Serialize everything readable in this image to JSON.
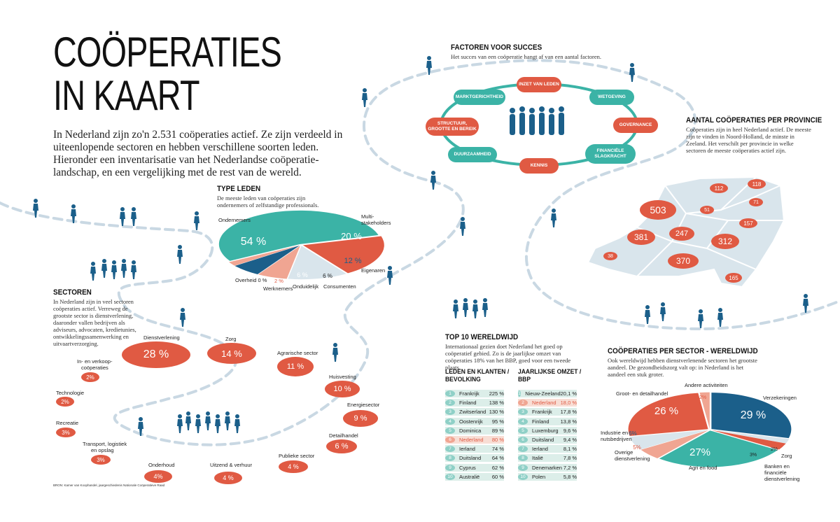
{
  "header": {
    "title_line1": "COÖPERATIES",
    "title_line2": "IN KAART",
    "intro": "In Nederland zijn zo'n 2.531 coöperaties actief. Ze zijn verdeeld in uiteenlopende sectoren en hebben verschillene soorten leden. Hieronder een inventarisatie van het Nederlandse coöperatie-landschap, en een vergelijking met de rest van de wereld."
  },
  "type_leden": {
    "title": "TYPE LEDEN",
    "desc": "De meeste leden van coöperaties zijn ondernemers of zelfstandige professionals.",
    "chart_data": {
      "type": "pie",
      "title": "TYPE LEDEN",
      "slices": [
        {
          "label": "Ondernemers",
          "value": 54,
          "display": "54 %",
          "color": "#3bb3a6"
        },
        {
          "label": "Multi-stakeholders",
          "value": 20,
          "display": "20 %",
          "color": "#e05a43"
        },
        {
          "label": "Eigenaren",
          "value": 12,
          "display": "12 %",
          "color": "#d9e5ec"
        },
        {
          "label": "Consumenten",
          "value": 6,
          "display": "6 %",
          "color": "#f0a592"
        },
        {
          "label": "Onduidelijk",
          "value": 6,
          "display": "6 %",
          "color": "#1b5f8a"
        },
        {
          "label": "Werknemers",
          "value": 2,
          "display": "2 %",
          "color": "#f0a592"
        },
        {
          "label": "Overheid",
          "value": 0,
          "display": "0 %",
          "color": "#cccccc"
        }
      ]
    },
    "labels": {
      "ondernemers": "Ondernemers",
      "multi1": "Multi-",
      "multi2": "stakeholders",
      "eigenaren": "Eigenaren",
      "consumenten": "Consumenten",
      "onduidelijk": "Onduidelijk",
      "werknemers": "Werknemers",
      "overheid": "Overheid",
      "overheid_val": "0 %",
      "werknemers_val": "2 %"
    }
  },
  "sectoren": {
    "title": "SECTOREN",
    "desc": "In Nederland zijn in veel sectoren coöperaties actief. Verreweg de grootste sector is dienstverlening, daaronder vallen bedrijven als adviseurs, advocaten, kredietunies, ontwikkelingssamenwerking en uitvaartverzorging.",
    "chart_data": {
      "type": "bar",
      "categories": [
        "Dienstverlening",
        "Zorg",
        "Agrarische sector",
        "Huisvesting",
        "Energiesector",
        "Detailhandel",
        "Publieke sector",
        "Uitzend & verhuur",
        "Onderhoud",
        "In- en verkoop-coöperaties",
        "Technologie",
        "Recreatie",
        "Transport, logistiek en opslag"
      ],
      "values": [
        28,
        14,
        11,
        10,
        9,
        6,
        4,
        4,
        4,
        2,
        2,
        3,
        3
      ],
      "unit": "%"
    },
    "items": {
      "dienst": {
        "label": "Dienstverlening",
        "val": "28 %"
      },
      "zorg": {
        "label": "Zorg",
        "val": "14 %"
      },
      "agrar": {
        "label": "Agrarische sector",
        "val": "11 %"
      },
      "huis": {
        "label": "Huisvesting",
        "val": "10 %"
      },
      "energie": {
        "label": "Energiesector",
        "val": "9 %"
      },
      "detail": {
        "label": "Detailhandel",
        "val": "6 %"
      },
      "publiek": {
        "label": "Publieke sector",
        "val": "4 %"
      },
      "uitzend": {
        "label": "Uitzend & verhuur",
        "val": "4 %"
      },
      "onderhoud": {
        "label": "Onderhoud",
        "val": "4%"
      },
      "inverkoop": {
        "label1": "In- en verkoop-",
        "label2": "coöperaties",
        "val": "2%"
      },
      "tech": {
        "label": "Technologie",
        "val": "2%"
      },
      "recreatie": {
        "label": "Recreatie",
        "val": "3%"
      },
      "transport": {
        "label1": "Transport, logistiek",
        "label2": "en opslag",
        "val": "3%"
      }
    }
  },
  "factoren": {
    "title": "FACTOREN VOOR SUCCES",
    "desc": "Het succes van een coöperatie hangt af van een aantal factoren.",
    "items": {
      "inzet": "INZET VAN LEDEN",
      "markt": "MARKTGERICHTHEID",
      "wet": "WETGEVING",
      "struct1": "STRUCTUUR,",
      "struct2": "GROOTTE EN BEREIK",
      "gov": "GOVERNANCE",
      "duur": "DUURZAAMHEID",
      "fin1": "FINANCIËLE",
      "fin2": "SLAGKRACHT",
      "kennis": "KENNIS"
    }
  },
  "provincie": {
    "title": "AANTAL COÖPERATIES PER PROVINCIE",
    "desc": "Coöperaties zijn in heel Nederland actief. De meeste zijn te vinden in Noord-Holland, de minste in Zeeland. Het verschilt per provincie in welke sectoren de meeste coöperaties actief zijn.",
    "values": {
      "nh": "503",
      "gr": "118",
      "fr": "112",
      "dr": "71",
      "fl": "51",
      "ov": "157",
      "zh": "381",
      "ut": "247",
      "ge": "312",
      "nb": "370",
      "li": "165",
      "ze": "38"
    }
  },
  "top10": {
    "title": "TOP 10 WERELDWIJD",
    "desc": "Internationaal gezien doet Nederland het goed op coöperatief gebied. Zo is de jaarlijkse omzet van coöperaties 18% van het BBP, goed voor een tweede plaats.",
    "col1_title1": "LEDEN EN KLANTEN /",
    "col1_title2": "BEVOLKING",
    "col2_title1": "JAARLIJKSE OMZET /",
    "col2_title2": "BBP",
    "col1": [
      {
        "rank": "1",
        "country": "Frankrijk",
        "val": "225 %"
      },
      {
        "rank": "2",
        "country": "Finland",
        "val": "138 %"
      },
      {
        "rank": "3",
        "country": "Zwitserland",
        "val": "130 %"
      },
      {
        "rank": "4",
        "country": "Oostenrijk",
        "val": "95 %"
      },
      {
        "rank": "5",
        "country": "Dominica",
        "val": "89 %"
      },
      {
        "rank": "6",
        "country": "Nederland",
        "val": "80 %"
      },
      {
        "rank": "7",
        "country": "Ierland",
        "val": "74 %"
      },
      {
        "rank": "8",
        "country": "Duitsland",
        "val": "64 %"
      },
      {
        "rank": "9",
        "country": "Cyprus",
        "val": "62 %"
      },
      {
        "rank": "10",
        "country": "Australië",
        "val": "60 %"
      }
    ],
    "col2": [
      {
        "rank": "1",
        "country": "Nieuw-Zeeland",
        "val": "20,1 %"
      },
      {
        "rank": "2",
        "country": "Nederland",
        "val": "18,0 %"
      },
      {
        "rank": "3",
        "country": "Frankrijk",
        "val": "17,8 %"
      },
      {
        "rank": "4",
        "country": "Finland",
        "val": "13,8 %"
      },
      {
        "rank": "5",
        "country": "Luxemburg",
        "val": "9,6 %"
      },
      {
        "rank": "6",
        "country": "Duitsland",
        "val": "9,4 %"
      },
      {
        "rank": "7",
        "country": "Ierland",
        "val": "8,1 %"
      },
      {
        "rank": "8",
        "country": "Italië",
        "val": "7,8 %"
      },
      {
        "rank": "9",
        "country": "Denemarken",
        "val": "7,2 %"
      },
      {
        "rank": "10",
        "country": "Polen",
        "val": "5,8 %"
      }
    ],
    "highlight": "Nederland"
  },
  "wereld": {
    "title": "COÖPERATIES PER SECTOR - WERELDWIJD",
    "desc": "Ook wereldwijd hebben dienstverlenende sectoren het grootste aandeel. De gezondheidszorg valt op: in Nederland is het aandeel een stuk groter.",
    "chart_data": {
      "type": "pie",
      "title": "COÖPERATIES PER SECTOR - WERELDWIJD",
      "slices": [
        {
          "label": "Verzekeringen",
          "value": 29,
          "display": "29 %",
          "color": "#1b5f8a"
        },
        {
          "label": "Zorg",
          "value": 2,
          "display": "2%",
          "color": "#d9e5ec"
        },
        {
          "label": "Banken en financiële dienstverlening",
          "value": 3,
          "display": "3%",
          "color": "#e05a43"
        },
        {
          "label": "Agri en food",
          "value": 27,
          "display": "27%",
          "color": "#3bb3a6"
        },
        {
          "label": "Overige dienstverlening",
          "value": 5,
          "display": "5%",
          "color": "#f0a592"
        },
        {
          "label": "Industrie en nutsbedrijven",
          "value": 6,
          "display": "6%",
          "color": "#d9e5ec"
        },
        {
          "label": "Groot- en detailhandel",
          "value": 26,
          "display": "26 %",
          "color": "#e05a43"
        },
        {
          "label": "Andere activiteiten",
          "value": 2,
          "display": "2%",
          "color": "#f0a592"
        }
      ]
    },
    "labels": {
      "verz": "Verzekeringen",
      "zorg": "Zorg",
      "bank1": "Banken en",
      "bank2": "financiële",
      "bank3": "dienstverlening",
      "agri": "Agri en food",
      "overig1": "Overige",
      "overig2": "dienstverlening",
      "ind1": "Industrie en",
      "ind2": "nutsbedrijven",
      "groot": "Groot- en detailhandel",
      "andere": "Andere activiteiten"
    }
  },
  "source": "BRON: Kamer van Koophandel, jaargeschiedenis Nationale Coöperatieve Raad",
  "colors": {
    "red": "#e05a43",
    "teal": "#3bb3a6",
    "navy": "#1b5f8a",
    "salmon": "#f0a592",
    "grey": "#d9e5ec",
    "figure": "#1b5f8a"
  }
}
